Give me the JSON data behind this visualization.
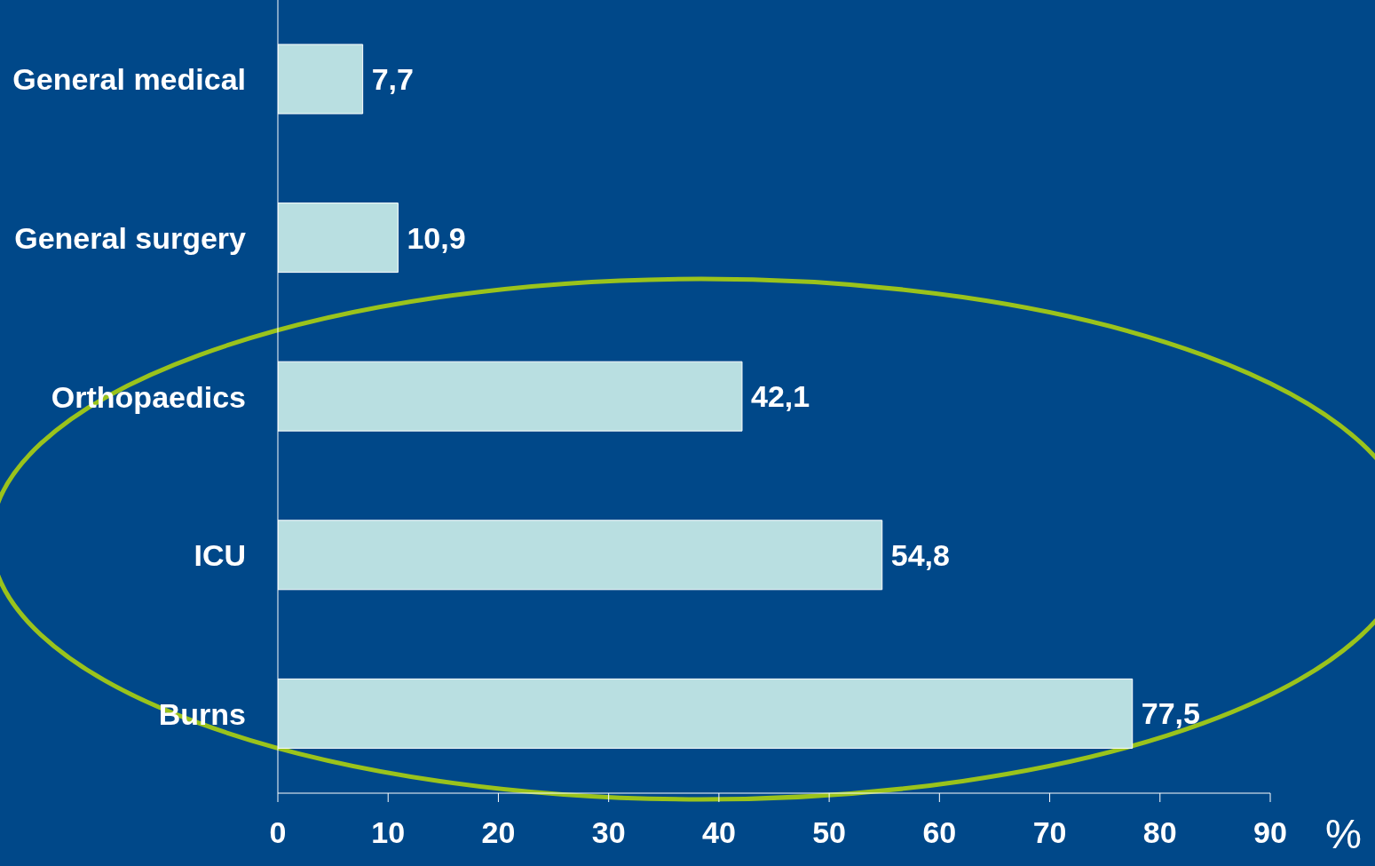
{
  "chart_data": {
    "type": "bar",
    "orientation": "horizontal",
    "xlabel": "%",
    "categories": [
      "General medical",
      "General surgery",
      "Orthopaedics",
      "ICU",
      "Burns"
    ],
    "values": [
      7.7,
      10.9,
      42.1,
      54.8,
      77.5
    ],
    "value_labels": [
      "7,7",
      "10,9",
      "42,1",
      "54,8",
      "77,5"
    ],
    "color": "#b9dfe1",
    "xlim": [
      0,
      90
    ],
    "xticks": [
      0,
      10,
      20,
      30,
      40,
      50,
      60,
      70,
      80,
      90
    ],
    "grid": false,
    "legend": false
  }
}
